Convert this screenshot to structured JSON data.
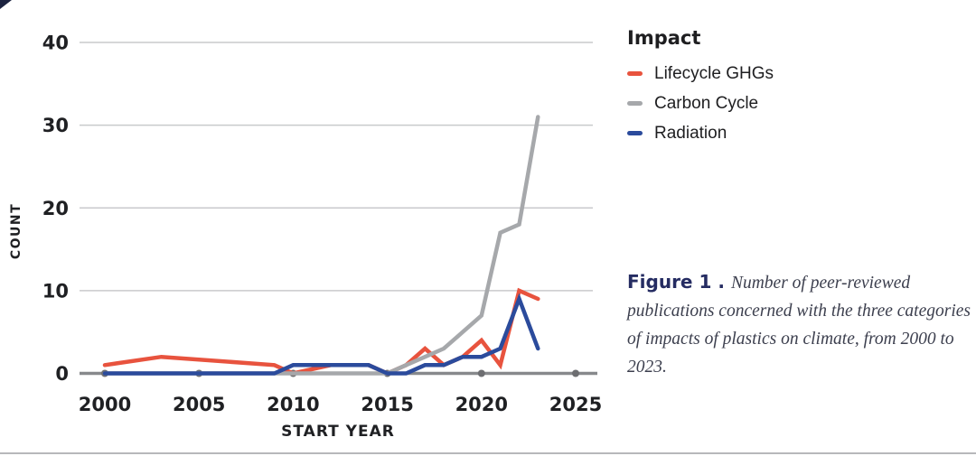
{
  "figure": {
    "caption_label": "Figure 1 .",
    "caption_text": "Number of peer-reviewed publications concerned with the three categories of impacts of plastics on climate, from 2000 to 2023."
  },
  "legend": {
    "title": "Impact",
    "items": [
      {
        "label": "Lifecycle GHGs",
        "color": "#E8533E"
      },
      {
        "label": "Carbon Cycle",
        "color": "#A6A8AB"
      },
      {
        "label": "Radiation",
        "color": "#2B4B9C"
      }
    ]
  },
  "chart_data": {
    "type": "line",
    "title": "",
    "xlabel": "START YEAR",
    "ylabel": "COUNT",
    "xlim": [
      2000,
      2025
    ],
    "ylim": [
      0,
      40
    ],
    "x_ticks": [
      2000,
      2005,
      2010,
      2015,
      2020,
      2025
    ],
    "y_ticks": [
      0,
      10,
      20,
      30,
      40
    ],
    "grid": true,
    "legend_position": "right",
    "series": [
      {
        "name": "Lifecycle GHGs",
        "color": "#E8533E",
        "points": [
          [
            2000,
            1
          ],
          [
            2003,
            2
          ],
          [
            2009,
            1
          ],
          [
            2010,
            0
          ],
          [
            2012,
            1
          ],
          [
            2014,
            1
          ],
          [
            2015,
            0
          ],
          [
            2016,
            1
          ],
          [
            2017,
            3
          ],
          [
            2018,
            1
          ],
          [
            2019,
            2
          ],
          [
            2020,
            4
          ],
          [
            2021,
            1
          ],
          [
            2022,
            10
          ],
          [
            2023,
            9
          ]
        ]
      },
      {
        "name": "Carbon Cycle",
        "color": "#A6A8AB",
        "points": [
          [
            2000,
            0
          ],
          [
            2014,
            0
          ],
          [
            2015,
            0
          ],
          [
            2016,
            1
          ],
          [
            2017,
            2
          ],
          [
            2018,
            3
          ],
          [
            2019,
            5
          ],
          [
            2020,
            7
          ],
          [
            2021,
            17
          ],
          [
            2022,
            18
          ],
          [
            2023,
            31
          ]
        ]
      },
      {
        "name": "Radiation",
        "color": "#2B4B9C",
        "points": [
          [
            2000,
            0
          ],
          [
            2009,
            0
          ],
          [
            2010,
            1
          ],
          [
            2014,
            1
          ],
          [
            2015,
            0
          ],
          [
            2016,
            0
          ],
          [
            2017,
            1
          ],
          [
            2018,
            1
          ],
          [
            2019,
            2
          ],
          [
            2020,
            2
          ],
          [
            2021,
            3
          ],
          [
            2022,
            9
          ],
          [
            2023,
            3
          ]
        ]
      }
    ]
  },
  "colors": {
    "grid": "#C9CACC",
    "axis_line": "#87898C",
    "tick_dot": "#6D6E71",
    "label_text": "#1F2023"
  }
}
